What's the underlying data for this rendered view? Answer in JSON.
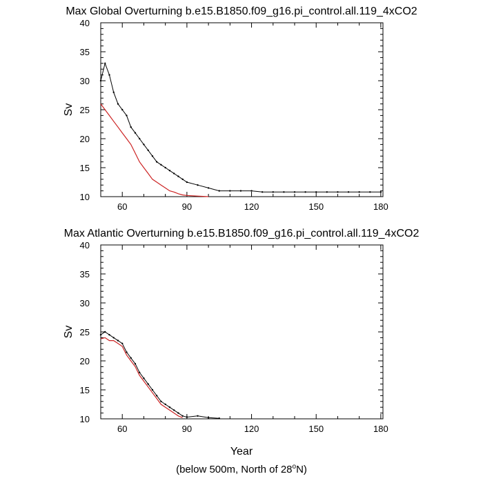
{
  "colors": {
    "raw_series": "#000000",
    "smooth_series": "#cc2222",
    "axes": "#000000",
    "background": "#ffffff"
  },
  "footnote": {
    "text_before": "(below 500m, North of 28",
    "degree": "o",
    "text_after": "N)"
  },
  "chart_data": [
    {
      "type": "line",
      "title": "Max Global Overturning b.e15.B1850.f09_g16.pi_control.all.119_4xCO2",
      "xlabel": "",
      "ylabel": "Sv",
      "xlim": [
        50,
        181
      ],
      "ylim": [
        10,
        40
      ],
      "xticks": [
        60,
        90,
        120,
        150,
        180
      ],
      "yticks": [
        10,
        15,
        20,
        25,
        30,
        35,
        40
      ],
      "grid": false,
      "series": [
        {
          "style": "raw",
          "x": [
            50,
            52,
            54,
            56,
            58,
            60,
            62,
            64,
            66,
            68,
            70,
            72,
            74,
            76,
            78,
            80,
            82,
            84,
            86,
            88,
            90,
            95,
            100,
            105,
            110,
            115,
            120,
            125,
            130,
            135,
            140,
            145,
            150,
            155,
            160,
            165,
            170,
            175,
            180
          ],
          "y": [
            30,
            33,
            31,
            28,
            26,
            25,
            24,
            22,
            21,
            20,
            19,
            18,
            17,
            16,
            15.5,
            15,
            14.5,
            14,
            13.5,
            13,
            12.5,
            12,
            11.5,
            11,
            11,
            11,
            11,
            10.8,
            10.8,
            10.8,
            10.8,
            10.8,
            10.8,
            10.8,
            10.8,
            10.8,
            10.8,
            10.8,
            10.8
          ]
        },
        {
          "style": "smoothed",
          "x": [
            50,
            52,
            54,
            56,
            58,
            60,
            62,
            64,
            66,
            68,
            70,
            72,
            74,
            76,
            78,
            80,
            82,
            84,
            86,
            88,
            90,
            95,
            100
          ],
          "y": [
            26,
            25,
            24,
            23,
            22,
            21,
            20,
            19,
            17.5,
            16,
            15,
            14,
            13,
            12.5,
            12,
            11.5,
            11,
            10.8,
            10.5,
            10.3,
            10.2,
            10.1,
            10
          ]
        }
      ]
    },
    {
      "type": "line",
      "title": "Max Atlantic Overturning b.e15.B1850.f09_g16.pi_control.all.119_4xCO2",
      "xlabel": "Year",
      "ylabel": "Sv",
      "xlim": [
        50,
        181
      ],
      "ylim": [
        10,
        40
      ],
      "xticks": [
        60,
        90,
        120,
        150,
        180
      ],
      "yticks": [
        10,
        15,
        20,
        25,
        30,
        35,
        40
      ],
      "grid": false,
      "series": [
        {
          "style": "raw",
          "x": [
            50,
            52,
            54,
            56,
            58,
            60,
            62,
            64,
            66,
            68,
            70,
            72,
            74,
            76,
            78,
            80,
            82,
            84,
            86,
            88,
            90,
            95,
            100,
            105
          ],
          "y": [
            24.5,
            25,
            24.5,
            24,
            23.5,
            23,
            21.5,
            20.5,
            19.5,
            18,
            17,
            16,
            15,
            14,
            13,
            12.5,
            12,
            11.5,
            11,
            10.5,
            10.3,
            10.5,
            10.2,
            10.1
          ]
        },
        {
          "style": "smoothed",
          "x": [
            50,
            52,
            54,
            56,
            58,
            60,
            62,
            64,
            66,
            68,
            70,
            72,
            74,
            76,
            78,
            80,
            82,
            84,
            86,
            88
          ],
          "y": [
            23.8,
            24,
            23.5,
            23.5,
            23,
            22.5,
            21,
            20,
            19,
            17.5,
            16.5,
            15.5,
            14.5,
            13.5,
            12.5,
            12,
            11.5,
            11,
            10.5,
            10.2
          ]
        }
      ]
    }
  ]
}
